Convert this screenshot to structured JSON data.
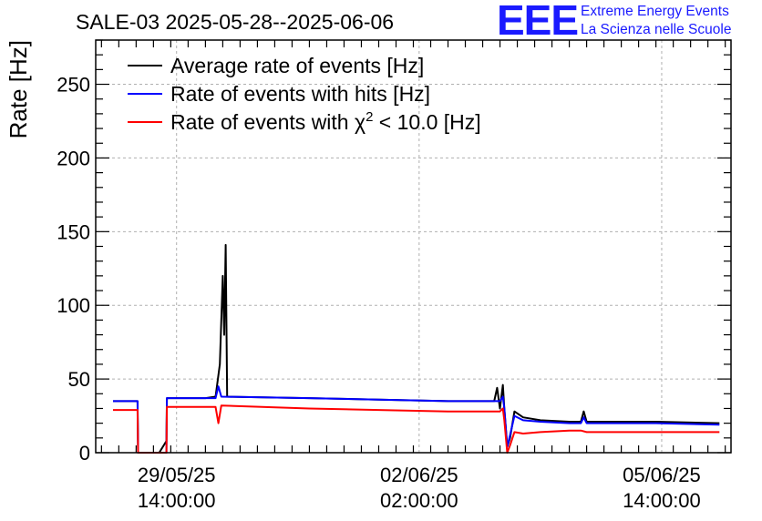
{
  "chart_data": {
    "type": "line",
    "title": "SALE-03 2025-05-28--2025-06-06",
    "ylabel": "Rate [Hz]",
    "xlabel": "",
    "ylim": [
      0,
      280
    ],
    "yticks": [
      0,
      50,
      100,
      150,
      200,
      250
    ],
    "xlim": [
      "2025-05-28 10:00",
      "2025-06-06 14:00"
    ],
    "xticks": [
      {
        "datetime": "2025-05-29 14:00",
        "date": "29/05/25",
        "time": "14:00:00"
      },
      {
        "datetime": "2025-06-02 02:00",
        "date": "02/06/25",
        "time": "02:00:00"
      },
      {
        "datetime": "2025-06-05 14:00",
        "date": "05/06/25",
        "time": "14:00:00"
      }
    ],
    "grid": true,
    "legend_position": "top-left",
    "series": [
      {
        "name": "Average rate of events [Hz]",
        "color": "#000000",
        "points": [
          [
            "2025-05-28 16:00",
            35
          ],
          [
            "2025-05-28 22:00",
            35
          ],
          [
            "2025-05-29 00:30",
            35
          ],
          [
            "2025-05-29 00:40",
            0
          ],
          [
            "2025-05-29 08:00",
            0
          ],
          [
            "2025-05-29 10:30",
            8
          ],
          [
            "2025-05-29 10:40",
            37
          ],
          [
            "2025-05-30 00:00",
            37
          ],
          [
            "2025-05-30 03:30",
            38
          ],
          [
            "2025-05-30 05:00",
            60
          ],
          [
            "2025-05-30 06:00",
            120
          ],
          [
            "2025-05-30 06:30",
            80
          ],
          [
            "2025-05-30 07:00",
            141
          ],
          [
            "2025-05-30 07:30",
            38
          ],
          [
            "2025-05-31 12:00",
            37
          ],
          [
            "2025-06-01 12:00",
            36
          ],
          [
            "2025-06-02 12:00",
            35
          ],
          [
            "2025-06-03 04:00",
            35
          ],
          [
            "2025-06-03 05:00",
            44
          ],
          [
            "2025-06-03 06:00",
            30
          ],
          [
            "2025-06-03 07:00",
            46
          ],
          [
            "2025-06-03 07:30",
            30
          ],
          [
            "2025-06-03 08:30",
            4
          ],
          [
            "2025-06-03 09:30",
            10
          ],
          [
            "2025-06-03 11:00",
            28
          ],
          [
            "2025-06-03 14:00",
            24
          ],
          [
            "2025-06-03 20:00",
            22
          ],
          [
            "2025-06-04 06:00",
            21
          ],
          [
            "2025-06-04 10:00",
            21
          ],
          [
            "2025-06-04 11:00",
            28
          ],
          [
            "2025-06-04 12:00",
            21
          ],
          [
            "2025-06-05 12:00",
            21
          ],
          [
            "2025-06-06 10:00",
            20
          ]
        ]
      },
      {
        "name": "Rate of events with hits [Hz]",
        "color": "#0000ff",
        "points": [
          [
            "2025-05-28 16:00",
            35
          ],
          [
            "2025-05-28 22:00",
            35
          ],
          [
            "2025-05-29 00:30",
            35
          ],
          [
            "2025-05-29 00:40",
            0
          ],
          [
            "2025-05-29 10:30",
            0
          ],
          [
            "2025-05-29 10:40",
            37
          ],
          [
            "2025-05-30 00:00",
            37
          ],
          [
            "2025-05-30 03:30",
            37
          ],
          [
            "2025-05-30 04:30",
            45
          ],
          [
            "2025-05-30 05:30",
            38
          ],
          [
            "2025-05-31 12:00",
            37
          ],
          [
            "2025-06-01 12:00",
            36
          ],
          [
            "2025-06-02 12:00",
            35
          ],
          [
            "2025-06-03 06:00",
            35
          ],
          [
            "2025-06-03 07:00",
            38
          ],
          [
            "2025-06-03 07:30",
            30
          ],
          [
            "2025-06-03 08:30",
            4
          ],
          [
            "2025-06-03 09:30",
            12
          ],
          [
            "2025-06-03 11:00",
            25
          ],
          [
            "2025-06-03 14:00",
            22
          ],
          [
            "2025-06-03 20:00",
            21
          ],
          [
            "2025-06-04 06:00",
            20
          ],
          [
            "2025-06-04 10:00",
            20
          ],
          [
            "2025-06-04 11:00",
            24
          ],
          [
            "2025-06-04 12:00",
            20
          ],
          [
            "2025-06-05 12:00",
            20
          ],
          [
            "2025-06-06 10:00",
            19
          ]
        ]
      },
      {
        "name": "Rate of events with χ² < 10.0 [Hz]",
        "color": "#ff0000",
        "points": [
          [
            "2025-05-28 16:00",
            29
          ],
          [
            "2025-05-28 22:00",
            29
          ],
          [
            "2025-05-29 00:30",
            29
          ],
          [
            "2025-05-29 00:40",
            0
          ],
          [
            "2025-05-29 10:30",
            0
          ],
          [
            "2025-05-29 10:40",
            31
          ],
          [
            "2025-05-30 00:00",
            31
          ],
          [
            "2025-05-30 03:30",
            31
          ],
          [
            "2025-05-30 04:30",
            20
          ],
          [
            "2025-05-30 05:30",
            32
          ],
          [
            "2025-05-31 12:00",
            30
          ],
          [
            "2025-06-01 12:00",
            29
          ],
          [
            "2025-06-02 12:00",
            28
          ],
          [
            "2025-06-03 06:00",
            28
          ],
          [
            "2025-06-03 07:00",
            30
          ],
          [
            "2025-06-03 07:30",
            22
          ],
          [
            "2025-06-03 08:30",
            0
          ],
          [
            "2025-06-03 09:30",
            5
          ],
          [
            "2025-06-03 11:00",
            14
          ],
          [
            "2025-06-03 14:00",
            13
          ],
          [
            "2025-06-03 20:00",
            14
          ],
          [
            "2025-06-04 06:00",
            15
          ],
          [
            "2025-06-04 10:00",
            15
          ],
          [
            "2025-06-04 12:00",
            14
          ],
          [
            "2025-06-05 12:00",
            14
          ],
          [
            "2025-06-06 10:00",
            14
          ]
        ]
      }
    ]
  },
  "logo": {
    "mark": "EEE",
    "line1": "Extreme Energy Events",
    "line2": "La Scienza nelle Scuole"
  },
  "legend_labels": {
    "chi2_prefix": "Rate of events with ",
    "chi2_symbol": "χ",
    "chi2_sup": "2",
    "chi2_suffix": " < 10.0 [Hz]"
  }
}
